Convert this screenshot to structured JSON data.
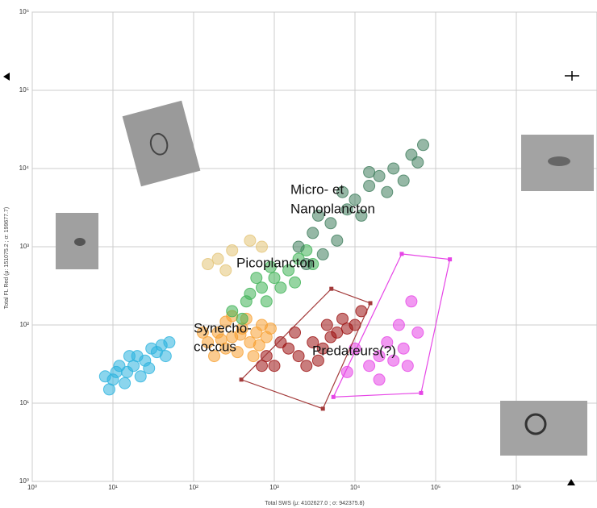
{
  "chart_data": {
    "type": "scatter",
    "x_label": "Total SWS (μ: 4102627.0 ; σ: 942375.8)",
    "y_label": "Total FL Red (μ: 151075.2 ; σ: 199677.7)",
    "log_x": true,
    "log_y": true,
    "grid": true,
    "xlim": [
      1,
      10000000
    ],
    "ylim": [
      1,
      1000000
    ],
    "xticks": [
      {
        "value": 1,
        "label": "10⁰"
      },
      {
        "value": 10,
        "label": "10¹"
      },
      {
        "value": 100,
        "label": "10²"
      },
      {
        "value": 1000,
        "label": "10³"
      },
      {
        "value": 10000,
        "label": "10⁴"
      },
      {
        "value": 100000,
        "label": "10⁵"
      },
      {
        "value": 1000000,
        "label": "10⁶"
      }
    ],
    "yticks": [
      {
        "value": 1,
        "label": "10⁰"
      },
      {
        "value": 10,
        "label": "10¹"
      },
      {
        "value": 100,
        "label": "10²"
      },
      {
        "value": 1000,
        "label": "10³"
      },
      {
        "value": 10000,
        "label": "10⁴"
      },
      {
        "value": 100000,
        "label": "10⁵"
      },
      {
        "value": 1000000,
        "label": "10⁶"
      }
    ],
    "annotations": [
      "Micro- et",
      "Nanoplancton",
      "Picoplancton",
      "Synecho-",
      "coccus",
      "Predateurs(?)"
    ],
    "series": [
      {
        "color": "#2bb3df",
        "x": [
          10,
          12,
          15,
          20,
          25,
          30,
          9,
          14,
          18,
          22,
          35,
          40,
          28,
          11,
          16,
          45,
          50,
          8
        ],
        "values": [
          20,
          30,
          25,
          40,
          35,
          50,
          15,
          18,
          30,
          22,
          45,
          55,
          28,
          25,
          40,
          40,
          60,
          22
        ]
      },
      {
        "color": "#f7a133",
        "x": [
          150,
          200,
          250,
          300,
          400,
          500,
          600,
          700,
          180,
          350,
          450,
          250,
          130,
          800,
          550,
          300,
          220,
          650,
          380,
          900
        ],
        "values": [
          60,
          80,
          50,
          70,
          90,
          60,
          80,
          100,
          40,
          45,
          120,
          110,
          80,
          70,
          40,
          130,
          65,
          55,
          75,
          90
        ]
      },
      {
        "color": "#e3c477",
        "x": [
          150,
          200,
          300,
          500,
          700,
          250
        ],
        "values": [
          600,
          700,
          900,
          1200,
          1000,
          500
        ]
      },
      {
        "color": "#3fb356",
        "x": [
          300,
          500,
          700,
          1000,
          1500,
          2000,
          400,
          800,
          1200,
          600,
          3000,
          1800,
          900,
          2500,
          450
        ],
        "values": [
          150,
          250,
          300,
          400,
          500,
          700,
          120,
          200,
          300,
          400,
          600,
          350,
          550,
          900,
          200
        ]
      },
      {
        "color": "#3f7d5c",
        "x": [
          2000,
          3000,
          5000,
          8000,
          10000,
          15000,
          20000,
          30000,
          50000,
          4000,
          6000,
          12000,
          25000,
          40000,
          70000,
          3500,
          7000,
          15000,
          2500,
          60000
        ],
        "values": [
          1000,
          1500,
          2000,
          3000,
          4000,
          6000,
          8000,
          10000,
          15000,
          800,
          1200,
          2500,
          5000,
          7000,
          20000,
          2500,
          5000,
          9000,
          600,
          12000
        ]
      },
      {
        "color": "#9c1212",
        "x": [
          800,
          1000,
          1500,
          2000,
          3000,
          4000,
          5000,
          6000,
          8000,
          10000,
          2500,
          1200,
          700,
          3500,
          7000,
          12000,
          1800,
          4500
        ],
        "values": [
          40,
          30,
          50,
          40,
          60,
          50,
          70,
          80,
          90,
          100,
          30,
          60,
          30,
          35,
          120,
          150,
          80,
          100
        ]
      },
      {
        "color": "#e645e6",
        "x": [
          10000,
          15000,
          20000,
          25000,
          30000,
          40000,
          35000,
          20000,
          50000,
          8000,
          60000,
          45000
        ],
        "values": [
          50,
          30,
          40,
          60,
          35,
          50,
          100,
          20,
          200,
          25,
          80,
          30
        ]
      }
    ],
    "gates": [
      {
        "color": "#a33a3a",
        "x": [
          390,
          5100,
          15500,
          4000
        ],
        "y": [
          20,
          290,
          190,
          8.5
        ]
      },
      {
        "color": "#e645e6",
        "x": [
          5400,
          38000,
          150000,
          66000
        ],
        "y": [
          12,
          810,
          690,
          13.5
        ]
      }
    ]
  }
}
